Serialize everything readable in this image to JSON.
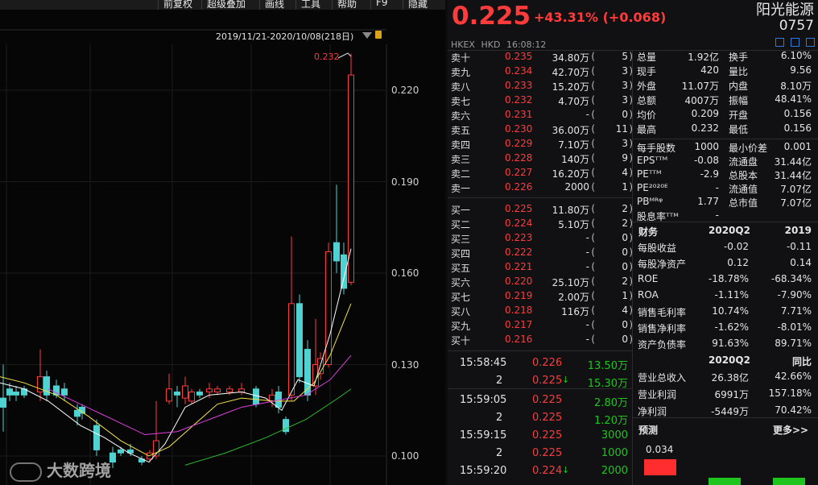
{
  "toolbar": {
    "items": [
      "前复权",
      "超级叠加",
      "画线",
      "工具",
      "帮助",
      "F9",
      "隐藏"
    ]
  },
  "chart": {
    "range_label": "2019/11/21-2020/10/08(218日)",
    "peak_label": "0.232",
    "y_ticks": [
      "0.220",
      "0.190",
      "0.160",
      "0.130",
      "0.100"
    ],
    "watermark": "大数跨境"
  },
  "chart_data": {
    "type": "candlestick",
    "y_axis_ticks": [
      0.22,
      0.19,
      0.16,
      0.13,
      0.1
    ],
    "high_marker": 0.232
  },
  "quote": {
    "price": "0.225",
    "change": "+43.31% (+0.068)",
    "name": "阳光能源",
    "code": "0757",
    "market": "HKEX",
    "currency": "HKD",
    "time": "16:08:12"
  },
  "asks": [
    [
      "卖十",
      "0.235",
      "34.80万",
      "5"
    ],
    [
      "卖九",
      "0.234",
      "42.70万",
      "3"
    ],
    [
      "卖八",
      "0.233",
      "15.20万",
      "3"
    ],
    [
      "卖七",
      "0.232",
      "4.70万",
      "3"
    ],
    [
      "卖六",
      "0.231",
      "-",
      "0"
    ],
    [
      "卖五",
      "0.230",
      "36.00万",
      "11"
    ],
    [
      "卖四",
      "0.229",
      "7.10万",
      "3"
    ],
    [
      "卖三",
      "0.228",
      "140万",
      "9"
    ],
    [
      "卖二",
      "0.227",
      "16.20万",
      "4"
    ],
    [
      "卖一",
      "0.226",
      "2000",
      "1"
    ]
  ],
  "bids": [
    [
      "买一",
      "0.225",
      "11.80万",
      "2"
    ],
    [
      "买二",
      "0.224",
      "5.10万",
      "2"
    ],
    [
      "买三",
      "0.223",
      "-",
      "0"
    ],
    [
      "买四",
      "0.222",
      "-",
      "0"
    ],
    [
      "买五",
      "0.221",
      "-",
      "0"
    ],
    [
      "买六",
      "0.220",
      "25.10万",
      "2"
    ],
    [
      "买七",
      "0.219",
      "2.00万",
      "1"
    ],
    [
      "买八",
      "0.218",
      "116万",
      "4"
    ],
    [
      "买九",
      "0.217",
      "-",
      "0"
    ],
    [
      "买十",
      "0.216",
      "-",
      "0"
    ]
  ],
  "stats": [
    [
      "总量",
      "1.92亿",
      "",
      "换手",
      "6.10%",
      ""
    ],
    [
      "现手",
      "420",
      "",
      "量比",
      "9.56",
      ""
    ],
    [
      "外盘",
      "11.07万",
      "red",
      "内盘",
      "8.10万",
      "green"
    ],
    [
      "总额",
      "4007万",
      "",
      "振幅",
      "48.41%",
      ""
    ],
    [
      "均价",
      "0.209",
      "red",
      "开盘",
      "0.156",
      "green"
    ],
    [
      "最高",
      "0.232",
      "red",
      "最低",
      "0.156",
      "green"
    ]
  ],
  "stats2": [
    [
      "每手股数",
      "1000",
      "最小价差",
      "0.001"
    ],
    [
      "EPSᵀᵀᴹ",
      "-0.08",
      "流通盘",
      "31.44亿"
    ],
    [
      "PEᵀᵀᴹ",
      "-2.9",
      "总股本",
      "31.44亿"
    ],
    [
      "PE²⁰²⁰ᴱ",
      "-",
      "流通值",
      "7.07亿"
    ],
    [
      "PBᴹᴿᵠ",
      "1.77",
      "总市值",
      "7.07亿"
    ],
    [
      "股息率ᵀᵀᴹ",
      "-",
      "",
      ""
    ]
  ],
  "trades": [
    [
      "15:58:45",
      "0.226",
      "13.50万",
      "green",
      ""
    ],
    [
      "2",
      "0.225",
      "15.30万",
      "green",
      "↓"
    ],
    [
      "15:59:05",
      "0.225",
      "2.80万",
      "green",
      ""
    ],
    [
      "2",
      "0.225",
      "1.20万",
      "green",
      ""
    ],
    [
      "15:59:15",
      "0.225",
      "3000",
      "green",
      ""
    ],
    [
      "2",
      "0.225",
      "1000",
      "green",
      ""
    ],
    [
      "15:59:20",
      "0.224",
      "2000",
      "green",
      "↓"
    ]
  ],
  "finance": {
    "title": "财务",
    "col1": "2020Q2",
    "col2": "2019",
    "rows": [
      [
        "每股收益",
        "-0.02",
        "-0.11"
      ],
      [
        "每股净资产",
        "0.12",
        "0.14"
      ],
      [
        "ROE",
        "-18.78%",
        "-68.34%"
      ],
      [
        "ROA",
        "-1.11%",
        "-7.90%"
      ],
      [
        "销售毛利率",
        "10.74%",
        "7.71%"
      ],
      [
        "销售净利率",
        "-1.62%",
        "-8.01%"
      ],
      [
        "资产负债率",
        "91.63%",
        "89.71%"
      ]
    ],
    "col3": "2020Q2",
    "col4": "同比",
    "rows2": [
      [
        "营业总收入",
        "26.38亿",
        "42.66%"
      ],
      [
        "营业利润",
        "6991万",
        "157.18%"
      ],
      [
        "净利润",
        "-5449万",
        "70.42%"
      ]
    ]
  },
  "forecast": {
    "title": "预测",
    "more": "更多>>",
    "value": "0.034"
  },
  "colors": {
    "up": "#ff3b3b",
    "down": "#1ec51e",
    "bull_candle": "#4fd2d2",
    "ma5": "#ffffff",
    "ma10": "#f5e04a",
    "ma20": "#e040e0",
    "ma60": "#2eb82e"
  }
}
